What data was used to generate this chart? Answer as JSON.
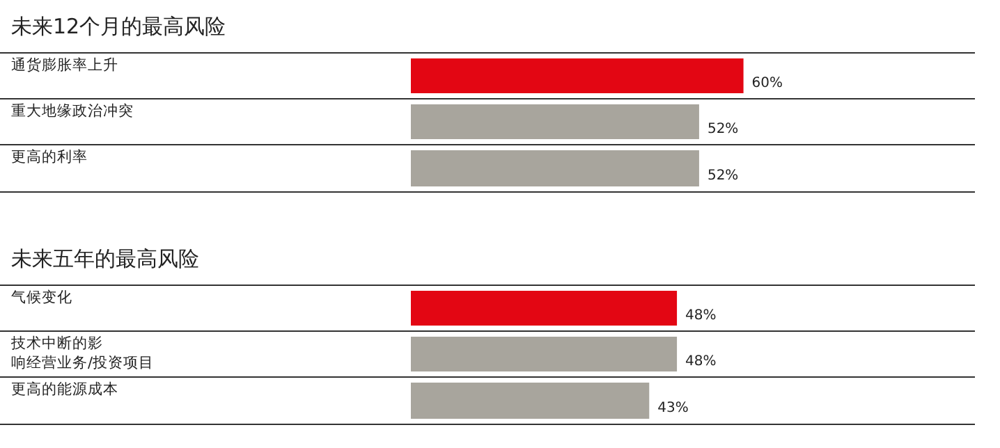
{
  "chart_data": [
    {
      "type": "bar",
      "orientation": "horizontal",
      "title": "未来12个月的最高风险",
      "categories": [
        "通货膨胀率上升",
        "重大地缘政治冲突",
        "更高的利率"
      ],
      "values": [
        60,
        52,
        52
      ],
      "colors": [
        "#e30613",
        "#a8a59d",
        "#a8a59d"
      ],
      "value_labels": [
        "60%",
        "52%",
        "52%"
      ]
    },
    {
      "type": "bar",
      "orientation": "horizontal",
      "title": "未来五年的最高风险",
      "categories": [
        "气候变化",
        "技术中断的影响经营业务/投资项目",
        "更高的能源成本"
      ],
      "values": [
        48,
        48,
        43
      ],
      "colors": [
        "#e30613",
        "#a8a59d",
        "#a8a59d"
      ],
      "value_labels": [
        "48%",
        "48%",
        "43%"
      ]
    }
  ]
}
